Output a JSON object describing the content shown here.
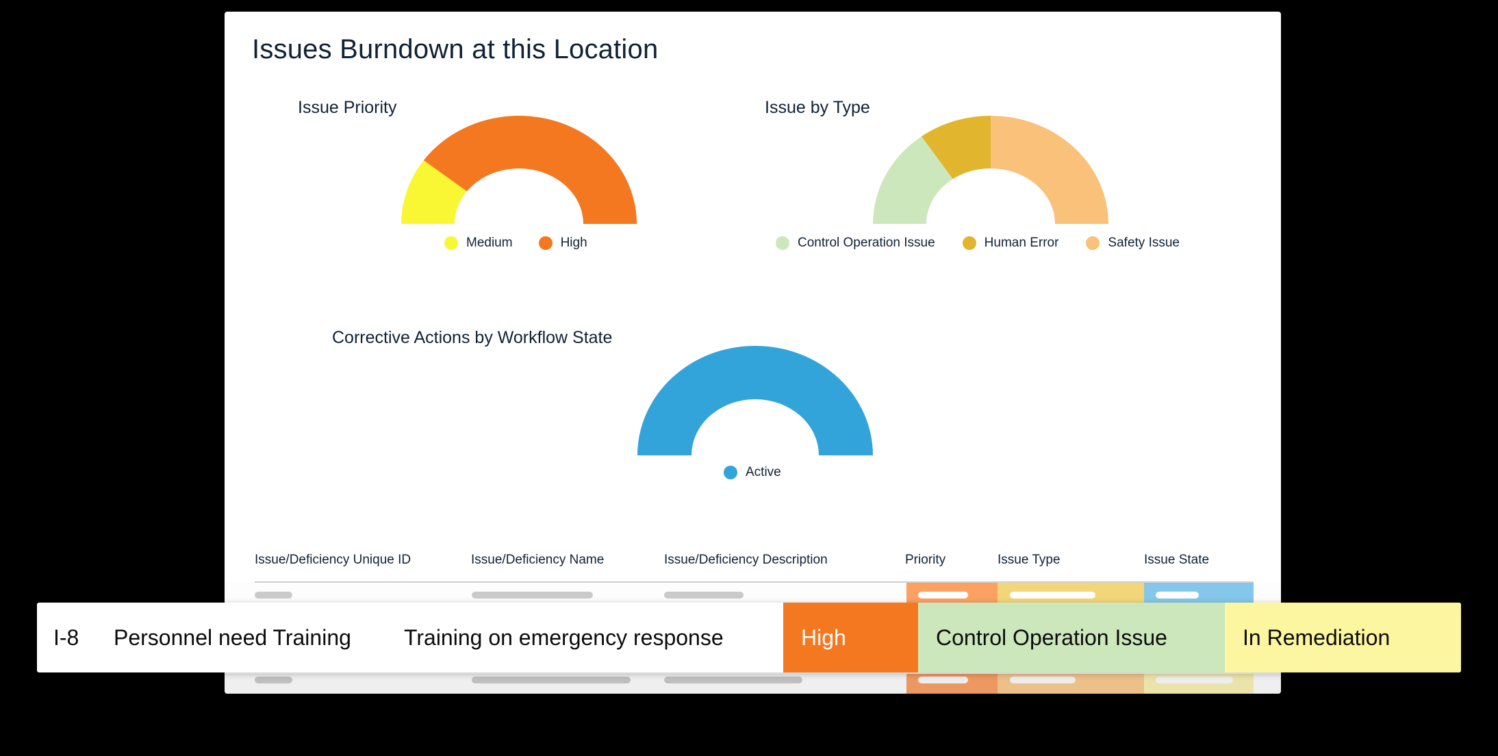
{
  "page": {
    "title": "Issues Burndown at this Location",
    "background": "#000000",
    "card_background": "#ffffff"
  },
  "charts": {
    "priority": {
      "title": "Issue Priority",
      "legend": [
        {
          "label": "Medium",
          "color": "#F9F733"
        },
        {
          "label": "High",
          "color": "#F47820"
        }
      ]
    },
    "type": {
      "title": "Issue by Type",
      "legend": [
        {
          "label": "Control Operation Issue",
          "color": "#CDE7BC"
        },
        {
          "label": "Human Error",
          "color": "#E2B52E"
        },
        {
          "label": "Safety Issue",
          "color": "#F9C17A"
        }
      ]
    },
    "workflow": {
      "title": "Corrective Actions by Workflow State",
      "legend": [
        {
          "label": "Active",
          "color": "#33A4DA"
        }
      ]
    }
  },
  "chart_data": [
    {
      "type": "pie",
      "variant": "semi-donut",
      "title": "Issue Priority",
      "categories": [
        "Medium",
        "High"
      ],
      "values": [
        1,
        4
      ],
      "colors": [
        "#F9F733",
        "#F47820"
      ],
      "legend_position": "bottom"
    },
    {
      "type": "pie",
      "variant": "semi-donut",
      "title": "Issue by Type",
      "categories": [
        "Control Operation Issue",
        "Human Error",
        "Safety Issue"
      ],
      "values": [
        3,
        2,
        5
      ],
      "colors": [
        "#CDE7BC",
        "#E2B52E",
        "#F9C17A"
      ],
      "legend_position": "bottom"
    },
    {
      "type": "pie",
      "variant": "semi-donut",
      "title": "Corrective Actions by Workflow State",
      "categories": [
        "Active"
      ],
      "values": [
        1
      ],
      "colors": [
        "#33A4DA"
      ],
      "legend_position": "bottom"
    }
  ],
  "table": {
    "columns": [
      "Issue/Deficiency Unique ID",
      "Issue/Deficiency Name",
      "Issue/Deficiency Description",
      "Priority",
      "Issue Type",
      "Issue State"
    ],
    "placeholder_rows": [
      {
        "priority_color": "#FBA262",
        "type_color": "#F3D57A",
        "state_color": "#85C7EA"
      },
      {
        "priority_color": "#ED9860",
        "type_color": "#EBC089",
        "state_color": "#EAE4AA"
      }
    ],
    "highlighted_row": {
      "id": "I-8",
      "name": "Personnel need Training",
      "description": "Training on emergency response",
      "priority": "High",
      "issue_type": "Control Operation Issue",
      "issue_state": "In Remediation",
      "priority_color": "#F47820",
      "type_color": "#CDE7BC",
      "state_color": "#FDF6A0"
    }
  }
}
